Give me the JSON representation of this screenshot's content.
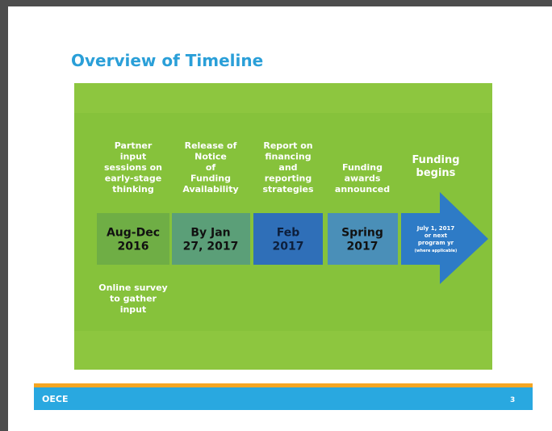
{
  "slide": {
    "title": "Overview of Timeline",
    "columns": [
      {
        "header": [
          "Partner",
          "input",
          "sessions on",
          "early-stage",
          "thinking"
        ],
        "period": [
          "Aug-Dec",
          "2016"
        ]
      },
      {
        "header": [
          "Release of",
          "Notice",
          "of",
          "Funding",
          "Availability"
        ],
        "period": [
          "By Jan",
          "27, 2017"
        ]
      },
      {
        "header": [
          "Report on",
          "financing",
          "and",
          "reporting",
          "strategies"
        ],
        "period": [
          "Feb",
          "2017"
        ]
      },
      {
        "header": [
          "Funding",
          "awards",
          "announced"
        ],
        "period": [
          "Spring",
          "2017"
        ]
      },
      {
        "header": [
          "Funding",
          "begins"
        ],
        "period": [
          "July 1, 2017",
          "or next",
          "program yr",
          "(where applicable)"
        ]
      }
    ],
    "note": [
      "Online survey",
      "to gather",
      "input"
    ],
    "footer": {
      "org": "OECE",
      "page": "3"
    }
  }
}
